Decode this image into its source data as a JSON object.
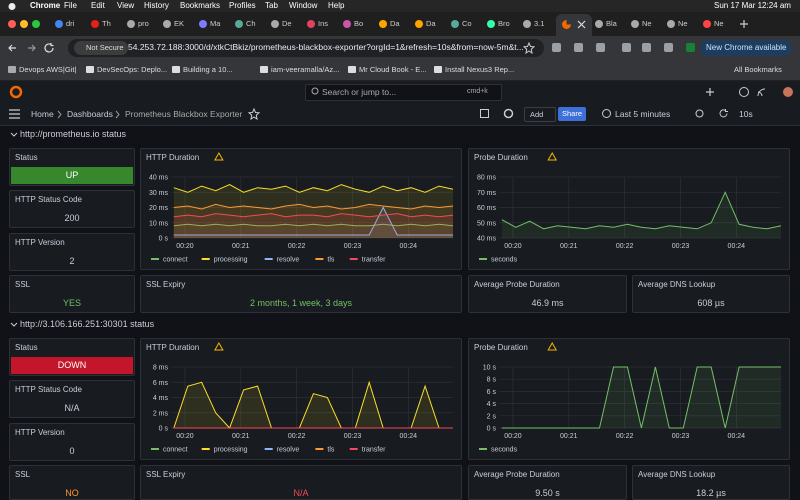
{
  "menu_bar": {
    "app": "Chrome",
    "items": [
      "File",
      "Edit",
      "View",
      "History",
      "Bookmarks",
      "Profiles",
      "Tab",
      "Window",
      "Help"
    ],
    "clock": "Sun 17 Mar  12:24 am"
  },
  "tabs": [
    "dri",
    "Th",
    "pro",
    "EK",
    "Ma",
    "Ch",
    "De",
    "Ins",
    "Bo",
    "Da",
    "Da",
    "Co",
    "Bro",
    "3.1",
    "Bla",
    "Ne",
    "Ne",
    "Ne"
  ],
  "address_bar": {
    "security": "Not Secure",
    "url": "54.253.72.188:3000/d/xtkCtBkiz/prometheus-blackbox-exporter?orgId=1&refresh=10s&from=now-5m&t...",
    "update": "New Chrome available"
  },
  "bookmarks": {
    "items": [
      "Devops AWS|Git|",
      "DevSecOps: Deplo...",
      "Building a 10...",
      "iam-veeramalla/Az...",
      "Mr Cloud Book - E...",
      "Install Nexus3 Rep..."
    ],
    "all": "All Bookmarks"
  },
  "grafana": {
    "search": "Search or jump to...",
    "shortcut": "cmd+k",
    "breadcrumbs": [
      "Home",
      "Dashboards",
      "Prometheus Blackbox Exporter"
    ],
    "add": "Add",
    "share": "Share",
    "time_range": "Last 5 minutes",
    "refresh": "10s"
  },
  "panel_titles": {
    "status": "Status",
    "http_status_code": "HTTP Status Code",
    "http_version": "HTTP Version",
    "ssl": "SSL",
    "ssl_expiry": "SSL Expiry",
    "avg_probe_duration": "Average Probe Duration",
    "avg_dns_lookup": "Average DNS Lookup"
  },
  "sections": [
    {
      "title": "http://prometheus.io status",
      "status": {
        "text": "UP",
        "color": "#37872d"
      },
      "http_status_code": {
        "text": "200",
        "color": "#ccccdc"
      },
      "http_version": {
        "text": "2",
        "color": "#ccccdc"
      },
      "ssl": {
        "text": "YES",
        "color": "#73bf69"
      },
      "ssl_expiry": {
        "text": "2 months, 1 week, 3 days",
        "color": "#73bf69"
      },
      "avg_probe_duration": {
        "text": "46.9 ms",
        "color": "#ccccdc"
      },
      "avg_dns_lookup": {
        "text": "608 µs",
        "color": "#ccccdc"
      }
    },
    {
      "title": "http://3.106.166.251:30301 status",
      "status": {
        "text": "DOWN",
        "color": "#c4162a"
      },
      "http_status_code": {
        "text": "N/A",
        "color": "#ccccdc"
      },
      "http_version": {
        "text": "0",
        "color": "#ccccdc"
      },
      "ssl": {
        "text": "NO",
        "color": "#ff9830"
      },
      "ssl_expiry": {
        "text": "N/A",
        "color": "#f2495c"
      },
      "avg_probe_duration": {
        "text": "9.50 s",
        "color": "#ccccdc"
      },
      "avg_dns_lookup": {
        "text": "18.2 µs",
        "color": "#ccccdc"
      }
    }
  ],
  "chart_data": [
    {
      "type": "line",
      "title": "HTTP Duration",
      "x": [
        19.8,
        20.05,
        20.3,
        20.55,
        20.8,
        21.05,
        21.3,
        21.55,
        21.8,
        22.05,
        22.3,
        22.55,
        22.8,
        23.05,
        23.3,
        23.55,
        23.8,
        24.05,
        24.3,
        24.55,
        24.8
      ],
      "xlim": [
        19.75,
        24.8
      ],
      "xticks": [
        {
          "value": 20,
          "label": "00:20"
        },
        {
          "value": 21,
          "label": "00:21"
        },
        {
          "value": 22,
          "label": "00:22"
        },
        {
          "value": 23,
          "label": "00:23"
        },
        {
          "value": 24,
          "label": "00:24"
        }
      ],
      "ylim": [
        0,
        40
      ],
      "yticks": [
        {
          "value": 0,
          "label": "0 s"
        },
        {
          "value": 10,
          "label": "10 ms"
        },
        {
          "value": 20,
          "label": "20 ms"
        },
        {
          "value": 30,
          "label": "30 ms"
        },
        {
          "value": 40,
          "label": "40 ms"
        }
      ],
      "series": [
        {
          "name": "connect",
          "color": "#73bf69",
          "values": [
            8,
            9,
            8,
            9,
            8,
            9,
            8,
            8,
            9,
            8,
            9,
            8,
            9,
            8,
            8,
            9,
            8,
            9,
            8,
            9,
            8
          ]
        },
        {
          "name": "processing",
          "color": "#fade2a",
          "values": [
            33,
            30,
            34,
            31,
            35,
            30,
            33,
            32,
            34,
            30,
            33,
            31,
            35,
            32,
            30,
            34,
            31,
            33,
            30,
            34,
            32
          ]
        },
        {
          "name": "resolve",
          "color": "#8ab8ff",
          "values": [
            2,
            2,
            2,
            2,
            2,
            2,
            2,
            2,
            2,
            2,
            2,
            2,
            2,
            2,
            2,
            20,
            2,
            2,
            2,
            2,
            2
          ]
        },
        {
          "name": "tls",
          "color": "#ff9830",
          "values": [
            20,
            21,
            19,
            22,
            20,
            21,
            20,
            19,
            21,
            22,
            20,
            21,
            19,
            20,
            22,
            21,
            20,
            19,
            21,
            20,
            21
          ]
        },
        {
          "name": "transfer",
          "color": "#f2495c",
          "values": [
            14,
            15,
            14,
            16,
            15,
            14,
            15,
            16,
            14,
            15,
            15,
            14,
            16,
            15,
            14,
            15,
            16,
            14,
            15,
            14,
            15
          ]
        }
      ]
    },
    {
      "type": "line",
      "title": "Probe Duration",
      "x": [
        19.8,
        20.05,
        20.3,
        20.55,
        20.8,
        21.05,
        21.3,
        21.55,
        21.8,
        22.05,
        22.3,
        22.55,
        22.8,
        23.05,
        23.3,
        23.55,
        23.8,
        24.05,
        24.3,
        24.55,
        24.8
      ],
      "xlim": [
        19.75,
        24.8
      ],
      "xticks": [
        {
          "value": 20,
          "label": "00:20"
        },
        {
          "value": 21,
          "label": "00:21"
        },
        {
          "value": 22,
          "label": "00:22"
        },
        {
          "value": 23,
          "label": "00:23"
        },
        {
          "value": 24,
          "label": "00:24"
        }
      ],
      "ylim": [
        40,
        80
      ],
      "yticks": [
        {
          "value": 40,
          "label": "40 ms"
        },
        {
          "value": 50,
          "label": "50 ms"
        },
        {
          "value": 60,
          "label": "60 ms"
        },
        {
          "value": 70,
          "label": "70 ms"
        },
        {
          "value": 80,
          "label": "80 ms"
        }
      ],
      "series": [
        {
          "name": "seconds",
          "color": "#73bf69",
          "values": [
            52,
            47,
            51,
            46,
            48,
            47,
            46,
            48,
            47,
            49,
            47,
            46,
            48,
            47,
            46,
            50,
            70,
            49,
            47,
            46,
            48
          ]
        }
      ]
    },
    {
      "type": "line",
      "title": "HTTP Duration",
      "x": [
        19.8,
        20.05,
        20.3,
        20.55,
        20.8,
        21.05,
        21.3,
        21.55,
        21.8,
        22.05,
        22.3,
        22.55,
        22.8,
        23.05,
        23.3,
        23.55,
        23.8,
        24.05,
        24.3,
        24.55,
        24.8
      ],
      "xlim": [
        19.75,
        24.8
      ],
      "xticks": [
        {
          "value": 20,
          "label": "00:20"
        },
        {
          "value": 21,
          "label": "00:21"
        },
        {
          "value": 22,
          "label": "00:22"
        },
        {
          "value": 23,
          "label": "00:23"
        },
        {
          "value": 24,
          "label": "00:24"
        }
      ],
      "ylim": [
        0,
        8
      ],
      "yticks": [
        {
          "value": 0,
          "label": "0 s"
        },
        {
          "value": 2,
          "label": "2 ms"
        },
        {
          "value": 4,
          "label": "4 ms"
        },
        {
          "value": 6,
          "label": "6 ms"
        },
        {
          "value": 8,
          "label": "8 ms"
        }
      ],
      "series": [
        {
          "name": "connect",
          "color": "#73bf69",
          "values": [
            0,
            0,
            0,
            0,
            0,
            0,
            0,
            0,
            0,
            0,
            0,
            0,
            0,
            0,
            0,
            0,
            0,
            0,
            0,
            0,
            0
          ]
        },
        {
          "name": "processing",
          "color": "#fade2a",
          "values": [
            0,
            5.5,
            6,
            2,
            0,
            5,
            5.5,
            0,
            0,
            0,
            4.5,
            4,
            0,
            0,
            6,
            0,
            0,
            0,
            5.5,
            0,
            0
          ]
        },
        {
          "name": "resolve",
          "color": "#8ab8ff",
          "values": [
            0,
            0,
            0,
            0,
            0,
            0,
            0,
            0,
            0,
            0,
            0,
            0,
            0,
            0,
            0,
            0,
            0,
            0,
            0,
            0,
            0
          ]
        },
        {
          "name": "tls",
          "color": "#ff9830",
          "values": [
            0,
            0,
            0,
            0,
            0,
            0,
            0,
            0,
            0,
            0,
            0,
            0,
            0,
            0,
            0,
            0,
            0,
            0,
            0,
            0,
            0
          ]
        },
        {
          "name": "transfer",
          "color": "#f2495c",
          "values": [
            0,
            0,
            0,
            0,
            0,
            0,
            0,
            0,
            0,
            0,
            0,
            0,
            0,
            0,
            0,
            0,
            0,
            0,
            0,
            0,
            0
          ]
        }
      ]
    },
    {
      "type": "line",
      "title": "Probe Duration",
      "x": [
        19.8,
        20.05,
        20.3,
        20.55,
        20.8,
        21.05,
        21.3,
        21.55,
        21.8,
        22.05,
        22.3,
        22.55,
        22.8,
        23.05,
        23.3,
        23.55,
        23.8,
        24.05,
        24.3,
        24.55,
        24.8
      ],
      "xlim": [
        19.75,
        24.8
      ],
      "xticks": [
        {
          "value": 20,
          "label": "00:20"
        },
        {
          "value": 21,
          "label": "00:21"
        },
        {
          "value": 22,
          "label": "00:22"
        },
        {
          "value": 23,
          "label": "00:23"
        },
        {
          "value": 24,
          "label": "00:24"
        }
      ],
      "ylim": [
        0,
        10
      ],
      "yticks": [
        {
          "value": 0,
          "label": "0 s"
        },
        {
          "value": 2,
          "label": "2 s"
        },
        {
          "value": 4,
          "label": "4 s"
        },
        {
          "value": 6,
          "label": "6 s"
        },
        {
          "value": 8,
          "label": "8 s"
        },
        {
          "value": 10,
          "label": "10 s"
        }
      ],
      "series": [
        {
          "name": "seconds",
          "color": "#73bf69",
          "values": [
            0,
            0,
            0,
            0,
            0,
            0,
            0,
            0,
            10,
            10,
            0,
            10,
            0,
            0,
            10,
            10,
            0,
            10,
            10,
            10,
            10
          ]
        }
      ]
    }
  ]
}
